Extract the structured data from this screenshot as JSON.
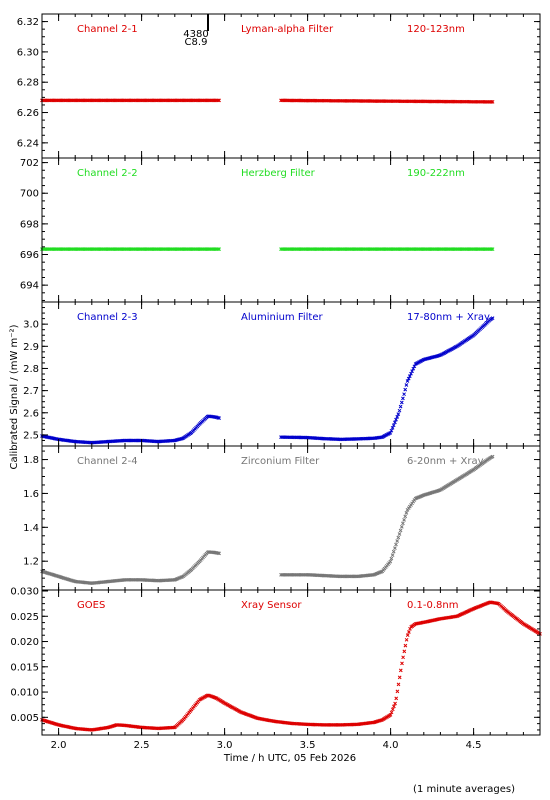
{
  "ylabel": "Calibrated Signal / (mW m⁻²)",
  "xlabel": "Time / h UTC, 05 Feb 2026",
  "footnote": "(1 minute averages)",
  "flare_marker": {
    "x": 2.9,
    "id": "4380",
    "class": "C8.9"
  },
  "chart_data": [
    {
      "type": "scatter",
      "channel": "Channel 2-1",
      "filter": "Lyman-alpha Filter",
      "band": "120-123nm",
      "color": "#dd0000",
      "ylim": [
        6.23,
        6.325
      ],
      "yticks": [
        6.24,
        6.26,
        6.28,
        6.3,
        6.32
      ],
      "ytick_labels": [
        "6.24",
        "6.26",
        "6.28",
        "6.30",
        "6.32"
      ],
      "xlim": [
        1.9,
        4.9
      ],
      "segments": [
        {
          "x": [
            1.9,
            2.97
          ],
          "y": [
            6.268,
            6.268
          ]
        },
        {
          "x": [
            3.34,
            4.62
          ],
          "y": [
            6.268,
            6.267
          ]
        }
      ]
    },
    {
      "type": "scatter",
      "channel": "Channel 2-2",
      "filter": "Herzberg Filter",
      "band": "190-222nm",
      "color": "#22dd22",
      "ylim": [
        692.9,
        702.3
      ],
      "yticks": [
        694,
        696,
        698,
        700,
        702
      ],
      "ytick_labels": [
        "694",
        "696",
        "698",
        "700",
        "702"
      ],
      "xlim": [
        1.9,
        4.9
      ],
      "segments": [
        {
          "x": [
            1.9,
            2.97
          ],
          "y": [
            696.35,
            696.35
          ]
        },
        {
          "x": [
            3.34,
            4.62
          ],
          "y": [
            696.35,
            696.35
          ]
        }
      ]
    },
    {
      "type": "scatter",
      "channel": "Channel 2-3",
      "filter": "Aluminium Filter",
      "band": "17-80nm + Xray",
      "color": "#0000cc",
      "ylim": [
        2.45,
        3.1
      ],
      "yticks": [
        2.5,
        2.6,
        2.7,
        2.8,
        2.9,
        3.0
      ],
      "ytick_labels": [
        "2.5",
        "2.6",
        "2.7",
        "2.8",
        "2.9",
        "3.0"
      ],
      "xlim": [
        1.9,
        4.9
      ],
      "segments": [
        {
          "x": [
            1.9,
            2.0,
            2.1,
            2.2,
            2.3,
            2.4,
            2.5,
            2.6,
            2.7,
            2.75,
            2.8,
            2.85,
            2.9,
            2.95,
            2.97
          ],
          "y": [
            2.495,
            2.48,
            2.47,
            2.465,
            2.47,
            2.475,
            2.475,
            2.47,
            2.475,
            2.485,
            2.51,
            2.55,
            2.585,
            2.58,
            2.575
          ]
        },
        {
          "x": [
            3.34,
            3.5,
            3.6,
            3.7,
            3.8,
            3.9,
            3.95,
            4.0,
            4.05,
            4.08,
            4.1,
            4.15,
            4.2,
            4.3,
            4.4,
            4.5,
            4.6,
            4.62
          ],
          "y": [
            2.49,
            2.488,
            2.483,
            2.48,
            2.482,
            2.485,
            2.49,
            2.51,
            2.6,
            2.68,
            2.74,
            2.82,
            2.84,
            2.86,
            2.9,
            2.95,
            3.02,
            3.03
          ]
        }
      ]
    },
    {
      "type": "scatter",
      "channel": "Channel 2-4",
      "filter": "Zirconium Filter",
      "band": "6-20nm + Xray",
      "color": "#777777",
      "ylim": [
        1.03,
        1.88
      ],
      "yticks": [
        1.2,
        1.4,
        1.6,
        1.8
      ],
      "ytick_labels": [
        "1.2",
        "1.4",
        "1.6",
        "1.8"
      ],
      "xlim": [
        1.9,
        4.9
      ],
      "segments": [
        {
          "x": [
            1.9,
            2.0,
            2.1,
            2.2,
            2.3,
            2.4,
            2.5,
            2.6,
            2.7,
            2.75,
            2.8,
            2.85,
            2.9,
            2.95,
            2.97
          ],
          "y": [
            1.14,
            1.11,
            1.08,
            1.07,
            1.08,
            1.09,
            1.09,
            1.085,
            1.09,
            1.11,
            1.15,
            1.2,
            1.255,
            1.25,
            1.245
          ]
        },
        {
          "x": [
            3.34,
            3.5,
            3.6,
            3.7,
            3.8,
            3.9,
            3.95,
            4.0,
            4.05,
            4.08,
            4.1,
            4.15,
            4.2,
            4.3,
            4.4,
            4.5,
            4.6,
            4.62
          ],
          "y": [
            1.12,
            1.12,
            1.115,
            1.11,
            1.11,
            1.12,
            1.14,
            1.2,
            1.35,
            1.44,
            1.5,
            1.57,
            1.59,
            1.62,
            1.68,
            1.74,
            1.81,
            1.82
          ]
        }
      ]
    },
    {
      "type": "scatter",
      "channel": "GOES",
      "filter": "Xray Sensor",
      "band": "0.1-0.8nm",
      "color": "#dd0000",
      "ylim": [
        0.0015,
        0.0302
      ],
      "yticks": [
        0.005,
        0.01,
        0.015,
        0.02,
        0.025,
        0.03
      ],
      "ytick_labels": [
        "0.005",
        "0.010",
        "0.015",
        "0.020",
        "0.025",
        "0.030"
      ],
      "xticks": [
        2.0,
        2.5,
        3.0,
        3.5,
        4.0,
        4.5
      ],
      "xtick_labels": [
        "2.0",
        "2.5",
        "3.0",
        "3.5",
        "4.0",
        "4.5"
      ],
      "xlim": [
        1.9,
        4.9
      ],
      "segments": [
        {
          "x": [
            1.9,
            2.0,
            2.1,
            2.2,
            2.3,
            2.35,
            2.4,
            2.5,
            2.6,
            2.7,
            2.75,
            2.8,
            2.85,
            2.9,
            2.95,
            3.0,
            3.1,
            3.2,
            3.3,
            3.4,
            3.5,
            3.6,
            3.7,
            3.8,
            3.9,
            3.95,
            4.0,
            4.03,
            4.05,
            4.07,
            4.1,
            4.12,
            4.15,
            4.2,
            4.3,
            4.4,
            4.5,
            4.6,
            4.65,
            4.7,
            4.8,
            4.9
          ],
          "y": [
            0.0045,
            0.0035,
            0.0028,
            0.0025,
            0.003,
            0.0035,
            0.0034,
            0.003,
            0.0028,
            0.003,
            0.0045,
            0.0065,
            0.0085,
            0.0094,
            0.0088,
            0.0078,
            0.006,
            0.0048,
            0.0042,
            0.0038,
            0.0036,
            0.0035,
            0.0035,
            0.0036,
            0.004,
            0.0045,
            0.0055,
            0.008,
            0.012,
            0.016,
            0.021,
            0.0228,
            0.0235,
            0.0238,
            0.0245,
            0.025,
            0.0265,
            0.0278,
            0.0275,
            0.026,
            0.0235,
            0.0215
          ]
        }
      ]
    }
  ]
}
